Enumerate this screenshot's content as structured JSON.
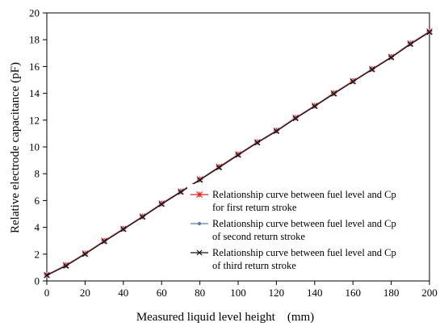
{
  "chart_data": {
    "type": "line",
    "title": "",
    "xlabel": "Measured liquid level height　(mm)",
    "ylabel": "Relative electrode capacitance (pF)",
    "xlim": [
      0,
      200
    ],
    "ylim": [
      0,
      20
    ],
    "x_ticks": [
      0,
      20,
      40,
      60,
      80,
      100,
      120,
      140,
      160,
      180,
      200
    ],
    "y_ticks": [
      0,
      2,
      4,
      6,
      8,
      10,
      12,
      14,
      16,
      18,
      20
    ],
    "grid": false,
    "legend_position": "lower-right",
    "x": [
      0,
      10,
      20,
      30,
      40,
      50,
      60,
      70,
      80,
      90,
      100,
      110,
      120,
      130,
      140,
      150,
      160,
      170,
      180,
      190,
      200
    ],
    "series": [
      {
        "name": "Relationship curve between fuel level and Cp",
        "name_line2": "for first return stroke",
        "color": "#e8231f",
        "marker": "star",
        "values": [
          0.45,
          1.18,
          2.05,
          3.0,
          3.9,
          4.82,
          5.78,
          6.68,
          7.58,
          8.52,
          9.45,
          10.36,
          11.22,
          12.18,
          13.08,
          14.02,
          14.92,
          15.82,
          16.72,
          17.72,
          18.62
        ]
      },
      {
        "name": "Relationship curve between fuel level and Cp",
        "name_line2": "of second return stroke",
        "color": "#5b7fa8",
        "marker": "dot",
        "values": [
          0.43,
          1.14,
          2.02,
          2.96,
          3.87,
          4.79,
          5.74,
          6.65,
          7.55,
          8.48,
          9.41,
          10.33,
          11.19,
          12.15,
          13.05,
          13.98,
          14.89,
          15.79,
          16.69,
          17.68,
          18.58
        ]
      },
      {
        "name": "Relationship curve between fuel level and Cp",
        "name_line2": "of third return stroke",
        "color": "#111111",
        "marker": "x",
        "values": [
          0.42,
          1.12,
          2.0,
          2.94,
          3.85,
          4.77,
          5.72,
          6.63,
          7.53,
          8.46,
          9.39,
          10.31,
          11.17,
          12.13,
          13.03,
          13.96,
          14.87,
          15.77,
          16.67,
          17.66,
          18.56
        ]
      }
    ]
  }
}
